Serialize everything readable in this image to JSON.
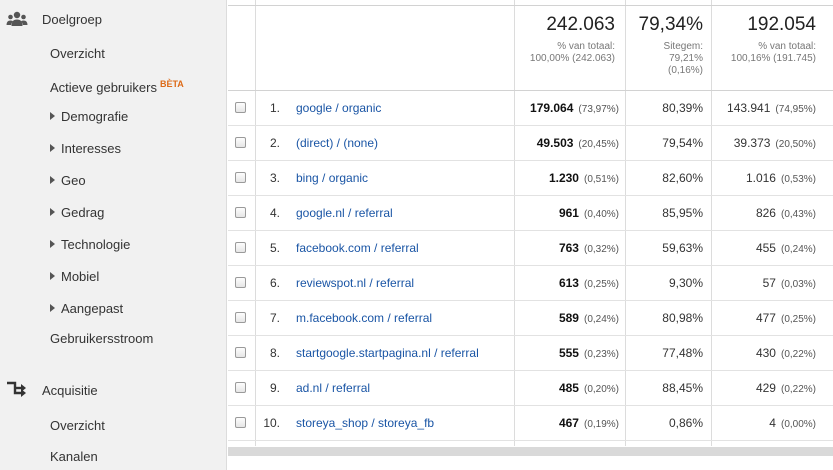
{
  "sidebar": {
    "doelgroep": {
      "label": "Doelgroep",
      "icon": "people-icon",
      "items": [
        {
          "label": "Overzicht"
        },
        {
          "label": "Actieve gebruikers",
          "badge": "BÈTA"
        },
        {
          "label": "Demografie",
          "expandable": true
        },
        {
          "label": "Interesses",
          "expandable": true
        },
        {
          "label": "Geo",
          "expandable": true
        },
        {
          "label": "Gedrag",
          "expandable": true
        },
        {
          "label": "Technologie",
          "expandable": true
        },
        {
          "label": "Mobiel",
          "expandable": true
        },
        {
          "label": "Aangepast",
          "expandable": true
        },
        {
          "label": "Gebruikersstroom"
        }
      ]
    },
    "acquisitie": {
      "label": "Acquisitie",
      "icon": "acquisition-arrows-icon",
      "items": [
        {
          "label": "Overzicht"
        },
        {
          "label": "Kanalen"
        }
      ]
    }
  },
  "summary": {
    "col1": {
      "value": "242.063",
      "line1": "% van totaal:",
      "line2": "100,00% (242.063)"
    },
    "col2": {
      "value": "79,34%",
      "line1": "Sitegem:",
      "line2": "79,21%",
      "line3": "(0,16%)"
    },
    "col3": {
      "value": "192.054",
      "line1": "% van totaal:",
      "line2": "100,16% (191.745)"
    }
  },
  "rows": [
    {
      "num": "1.",
      "source": "google / organic",
      "v1": "179.064",
      "p1": "(73,97%)",
      "v2": "80,39%",
      "v3": "143.941",
      "p3": "(74,95%)"
    },
    {
      "num": "2.",
      "source": "(direct) / (none)",
      "v1": "49.503",
      "p1": "(20,45%)",
      "v2": "79,54%",
      "v3": "39.373",
      "p3": "(20,50%)"
    },
    {
      "num": "3.",
      "source": "bing / organic",
      "v1": "1.230",
      "p1": "(0,51%)",
      "v2": "82,60%",
      "v3": "1.016",
      "p3": "(0,53%)"
    },
    {
      "num": "4.",
      "source": "google.nl / referral",
      "v1": "961",
      "p1": "(0,40%)",
      "v2": "85,95%",
      "v3": "826",
      "p3": "(0,43%)"
    },
    {
      "num": "5.",
      "source": "facebook.com / referral",
      "v1": "763",
      "p1": "(0,32%)",
      "v2": "59,63%",
      "v3": "455",
      "p3": "(0,24%)"
    },
    {
      "num": "6.",
      "source": "reviewspot.nl / referral",
      "v1": "613",
      "p1": "(0,25%)",
      "v2": "9,30%",
      "v3": "57",
      "p3": "(0,03%)"
    },
    {
      "num": "7.",
      "source": "m.facebook.com / referral",
      "v1": "589",
      "p1": "(0,24%)",
      "v2": "80,98%",
      "v3": "477",
      "p3": "(0,25%)"
    },
    {
      "num": "8.",
      "source": "startgoogle.startpagina.nl / referral",
      "v1": "555",
      "p1": "(0,23%)",
      "v2": "77,48%",
      "v3": "430",
      "p3": "(0,22%)"
    },
    {
      "num": "9.",
      "source": "ad.nl / referral",
      "v1": "485",
      "p1": "(0,20%)",
      "v2": "88,45%",
      "v3": "429",
      "p3": "(0,22%)"
    },
    {
      "num": "10.",
      "source": "storeya_shop / storeya_fb",
      "v1": "467",
      "p1": "(0,19%)",
      "v2": "0,86%",
      "v3": "4",
      "p3": "(0,00%)"
    }
  ]
}
